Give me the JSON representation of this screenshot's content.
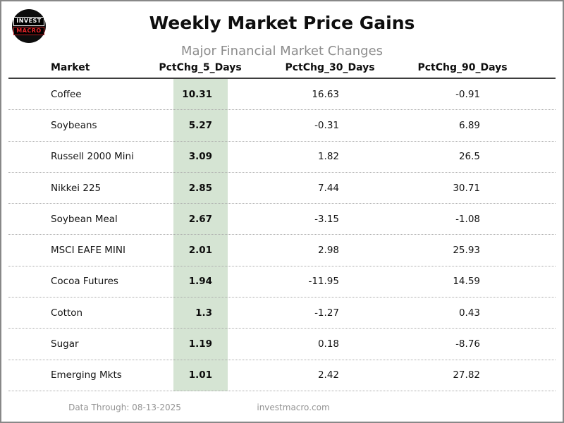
{
  "logo": {
    "line1": "INVEST",
    "line2": "MACRO"
  },
  "header": {
    "title": "Weekly Market Price Gains",
    "subtitle": "Major Financial Market Changes"
  },
  "table": {
    "columns": [
      "Market",
      "PctChg_5_Days",
      "PctChg_30_Days",
      "PctChg_90_Days"
    ],
    "highlight_color": "#d5e4d3",
    "rows": [
      {
        "market": "Coffee",
        "pct_5": "10.31",
        "pct_30": "16.63",
        "pct_90": "-0.91"
      },
      {
        "market": "Soybeans",
        "pct_5": "5.27",
        "pct_30": "-0.31",
        "pct_90": "6.89"
      },
      {
        "market": "Russell 2000 Mini",
        "pct_5": "3.09",
        "pct_30": "1.82",
        "pct_90": "26.5"
      },
      {
        "market": "Nikkei 225",
        "pct_5": "2.85",
        "pct_30": "7.44",
        "pct_90": "30.71"
      },
      {
        "market": "Soybean Meal",
        "pct_5": "2.67",
        "pct_30": "-3.15",
        "pct_90": "-1.08"
      },
      {
        "market": "MSCI EAFE MINI",
        "pct_5": "2.01",
        "pct_30": "2.98",
        "pct_90": "25.93"
      },
      {
        "market": "Cocoa Futures",
        "pct_5": "1.94",
        "pct_30": "-11.95",
        "pct_90": "14.59"
      },
      {
        "market": "Cotton",
        "pct_5": "1.3",
        "pct_30": "-1.27",
        "pct_90": "0.43"
      },
      {
        "market": "Sugar",
        "pct_5": "1.19",
        "pct_30": "0.18",
        "pct_90": "-8.76"
      },
      {
        "market": "Emerging Mkts",
        "pct_5": "1.01",
        "pct_30": "2.42",
        "pct_90": "27.82"
      }
    ]
  },
  "footer": {
    "data_through": "Data Through: 08-13-2025",
    "website": "investmacro.com"
  },
  "chart_data": {
    "type": "table",
    "title": "Weekly Market Price Gains",
    "subtitle": "Major Financial Market Changes",
    "columns": [
      "Market",
      "PctChg_5_Days",
      "PctChg_30_Days",
      "PctChg_90_Days"
    ],
    "highlighted_column": "PctChg_5_Days",
    "rows": [
      [
        "Coffee",
        10.31,
        16.63,
        -0.91
      ],
      [
        "Soybeans",
        5.27,
        -0.31,
        6.89
      ],
      [
        "Russell 2000 Mini",
        3.09,
        1.82,
        26.5
      ],
      [
        "Nikkei 225",
        2.85,
        7.44,
        30.71
      ],
      [
        "Soybean Meal",
        2.67,
        -3.15,
        -1.08
      ],
      [
        "MSCI EAFE MINI",
        2.01,
        2.98,
        25.93
      ],
      [
        "Cocoa Futures",
        1.94,
        -11.95,
        14.59
      ],
      [
        "Cotton",
        1.3,
        -1.27,
        0.43
      ],
      [
        "Sugar",
        1.19,
        0.18,
        -8.76
      ],
      [
        "Emerging Mkts",
        1.01,
        2.42,
        27.82
      ]
    ]
  }
}
